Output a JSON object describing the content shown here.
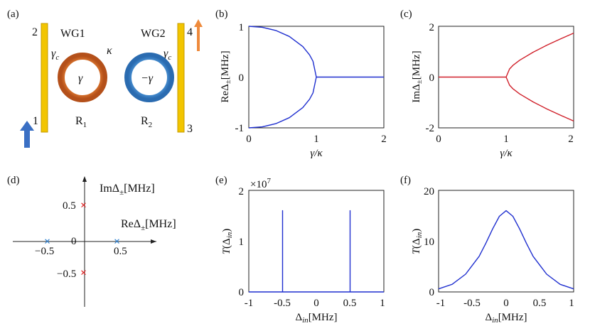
{
  "panels": {
    "a": {
      "label": "(a)",
      "wg1": "WG1",
      "wg2": "WG2",
      "kappa": "κ",
      "gamma_c_left": "γ",
      "gamma_c_right": "γ",
      "gamma_c_sub": "c",
      "ring1_gain": "γ",
      "ring2_loss": "−γ",
      "r1": "R",
      "r1_sub": "1",
      "r2": "R",
      "r2_sub": "2",
      "port1": "1",
      "port2": "2",
      "port3": "3",
      "port4": "4",
      "colors": {
        "waveguide": "#f2c500",
        "ring1": "#e06a1e",
        "ring2": "#3f8fd6",
        "in_arrow": "#3a6fc4",
        "out_arrow": "#ee8a3c"
      }
    },
    "b": {
      "label": "(b)"
    },
    "c": {
      "label": "(c)"
    },
    "d": {
      "label": "(d)",
      "im_axis": "ImΔ",
      "re_axis": "ReΔ",
      "pm_sub": "±",
      "unit": "[MHz]",
      "ticks": {
        "x_neg": "−0.5",
        "origin": "0",
        "x_pos": "0.5",
        "y_pos": "0.5",
        "y_neg": "−0.5"
      },
      "colors": {
        "re_marks": "#2a7fd0",
        "im_marks": "#e02020"
      }
    },
    "e": {
      "label": "(e)",
      "exponent_base": "×10",
      "exponent": "7"
    },
    "f": {
      "label": "(f)"
    }
  },
  "chart_data": [
    {
      "panel": "b",
      "type": "line",
      "ylabel": "ReΔ±[MHz]",
      "xlabel": "γ/κ",
      "xlim": [
        0,
        2
      ],
      "ylim": [
        -1,
        1
      ],
      "xticks": [
        "0",
        "1",
        "2"
      ],
      "yticks": [
        "-1",
        "0",
        "1"
      ],
      "color": "#1f2fcf",
      "series": [
        {
          "x": [
            0,
            0.2,
            0.4,
            0.6,
            0.8,
            0.9,
            0.95,
            1.0
          ],
          "y": [
            1.0,
            0.98,
            0.917,
            0.8,
            0.6,
            0.436,
            0.312,
            0.0
          ]
        },
        {
          "x": [
            0,
            0.2,
            0.4,
            0.6,
            0.8,
            0.9,
            0.95,
            1.0
          ],
          "y": [
            -1.0,
            -0.98,
            -0.917,
            -0.8,
            -0.6,
            -0.436,
            -0.312,
            0.0
          ]
        },
        {
          "x": [
            1.0,
            2.0
          ],
          "y": [
            0,
            0
          ]
        }
      ]
    },
    {
      "panel": "c",
      "type": "line",
      "ylabel": "ImΔ±[MHz]",
      "xlabel": "γ/κ",
      "xlim": [
        0,
        2
      ],
      "ylim": [
        -2,
        2
      ],
      "xticks": [
        "0",
        "1",
        "2"
      ],
      "yticks": [
        "-2",
        "0",
        "2"
      ],
      "color": "#d0202a",
      "series": [
        {
          "x": [
            0,
            1.0
          ],
          "y": [
            0,
            0
          ]
        },
        {
          "x": [
            1.0,
            1.05,
            1.1,
            1.2,
            1.4,
            1.6,
            1.8,
            2.0
          ],
          "y": [
            0.0,
            0.32,
            0.458,
            0.663,
            0.98,
            1.249,
            1.497,
            1.732
          ]
        },
        {
          "x": [
            1.0,
            1.05,
            1.1,
            1.2,
            1.4,
            1.6,
            1.8,
            2.0
          ],
          "y": [
            0.0,
            -0.32,
            -0.458,
            -0.663,
            -0.98,
            -1.249,
            -1.497,
            -1.732
          ]
        }
      ]
    },
    {
      "panel": "e",
      "type": "line",
      "ylabel": "T(Δin)",
      "xlabel": "Δin[MHz]",
      "xlim": [
        -1,
        1
      ],
      "ylim": [
        0,
        2
      ],
      "xticks": [
        "-1",
        "-0.5",
        "0",
        "0.5",
        "1"
      ],
      "yticks": [
        "0",
        "1",
        "2"
      ],
      "color": "#1f2fcf",
      "series": [
        {
          "x": [
            -1,
            -0.5,
            -0.5,
            -0.5,
            0.5,
            0.5,
            0.5,
            1
          ],
          "y": [
            0,
            0,
            1.6,
            0,
            0,
            1.6,
            0,
            0
          ]
        }
      ]
    },
    {
      "panel": "f",
      "type": "line",
      "ylabel": "T(Δin)",
      "xlabel": "Δin[MHz]",
      "xlim": [
        -1,
        1
      ],
      "ylim": [
        0,
        20
      ],
      "xticks": [
        "-1",
        "-0.5",
        "0",
        "0.5",
        "1"
      ],
      "yticks": [
        "0",
        "10",
        "20"
      ],
      "color": "#1f2fcf",
      "series": [
        {
          "x": [
            -1,
            -0.8,
            -0.6,
            -0.4,
            -0.3,
            -0.2,
            -0.1,
            0,
            0.1,
            0.2,
            0.3,
            0.4,
            0.6,
            0.8,
            1
          ],
          "y": [
            0.6,
            1.5,
            3.5,
            7.0,
            9.6,
            12.4,
            14.9,
            16.0,
            14.9,
            12.4,
            9.6,
            7.0,
            3.5,
            1.5,
            0.6
          ]
        }
      ]
    }
  ]
}
